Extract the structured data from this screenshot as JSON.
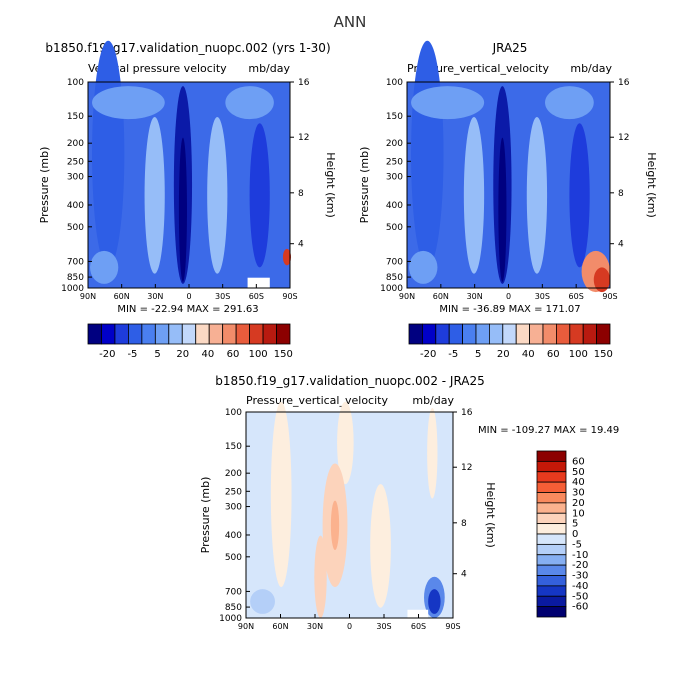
{
  "figure_title": "ANN",
  "chart_data": [
    {
      "type": "heatmap",
      "title": "b1850.f19_g17.validation_nuopc.002 (yrs 1-30)",
      "subtitle_left": "Vertical pressure velocity",
      "subtitle_right": "mb/day",
      "ylabel": "Pressure (mb)",
      "ylabel_right": "Height (km)",
      "x_ticks": [
        "90N",
        "60N",
        "30N",
        "0",
        "30S",
        "60S",
        "90S"
      ],
      "y_ticks": [
        "100",
        "150",
        "200",
        "250",
        "300",
        "400",
        "500",
        "700",
        "850",
        "1000"
      ],
      "y_ticks_right": [
        "16",
        "12",
        "8",
        "4"
      ],
      "stats": "MIN = -22.94   MAX = 291.63",
      "colorbar": {
        "labels": [
          "-20",
          "-5",
          "5",
          "20",
          "40",
          "60",
          "100",
          "150"
        ],
        "colors": [
          "#000080",
          "#0000c8",
          "#1e3cdc",
          "#2e5ee6",
          "#4a7ff0",
          "#6e9ff4",
          "#96bdf8",
          "#c2d8fb",
          "#fbd9c4",
          "#f7b094",
          "#f28c6a",
          "#e85c3c",
          "#d63a22",
          "#b81a10",
          "#8c0000"
        ]
      },
      "field_note": "mostly negative (ascent) values; strongest negative band near equator; positive values only near 90S surface"
    },
    {
      "type": "heatmap",
      "title": "JRA25",
      "subtitle_left": "Pressure_vertical_velocity",
      "subtitle_right": "mb/day",
      "ylabel": "Pressure (mb)",
      "ylabel_right": "Height (km)",
      "x_ticks": [
        "90N",
        "60N",
        "30N",
        "0",
        "30S",
        "60S",
        "90S"
      ],
      "y_ticks": [
        "100",
        "150",
        "200",
        "250",
        "300",
        "400",
        "500",
        "700",
        "850",
        "1000"
      ],
      "y_ticks_right": [
        "16",
        "12",
        "8",
        "4"
      ],
      "stats": "MIN = -36.89   MAX = 171.07",
      "colorbar": {
        "labels": [
          "-20",
          "-5",
          "5",
          "20",
          "40",
          "60",
          "100",
          "150"
        ],
        "colors": [
          "#000080",
          "#0000c8",
          "#1e3cdc",
          "#2e5ee6",
          "#4a7ff0",
          "#6e9ff4",
          "#96bdf8",
          "#c2d8fb",
          "#fbd9c4",
          "#f7b094",
          "#f28c6a",
          "#e85c3c",
          "#d63a22",
          "#b81a10",
          "#8c0000"
        ]
      },
      "field_note": "similar to model; positive (red) values near 70S-90S below 700 mb"
    },
    {
      "type": "heatmap",
      "title": "b1850.f19_g17.validation_nuopc.002 - JRA25",
      "subtitle_left": "Pressure_vertical_velocity",
      "subtitle_right": "mb/day",
      "ylabel": "Pressure (mb)",
      "ylabel_right": "Height (km)",
      "x_ticks": [
        "90N",
        "60N",
        "30N",
        "0",
        "30S",
        "60S",
        "90S"
      ],
      "y_ticks": [
        "100",
        "150",
        "200",
        "250",
        "300",
        "400",
        "500",
        "700",
        "850",
        "1000"
      ],
      "y_ticks_right": [
        "16",
        "12",
        "8",
        "4"
      ],
      "stats": "MIN = -109.27   MAX =  19.49",
      "colorbar": {
        "labels": [
          "60",
          "50",
          "40",
          "30",
          "20",
          "10",
          "5",
          "0",
          "-5",
          "-10",
          "-20",
          "-30",
          "-40",
          "-50",
          "-60"
        ],
        "colors": [
          "#8c0000",
          "#c41808",
          "#e83a1e",
          "#f55e36",
          "#f98a5e",
          "#fbb28e",
          "#fcd3bb",
          "#fdeede",
          "#d6e6fb",
          "#b4cff8",
          "#86aff2",
          "#5a88ea",
          "#3460dc",
          "#1536c4",
          "#0a1aa0",
          "#000070"
        ]
      },
      "field_note": "differences mostly within -5 to 5; strong negative near 70S-80S below 700 mb"
    }
  ]
}
